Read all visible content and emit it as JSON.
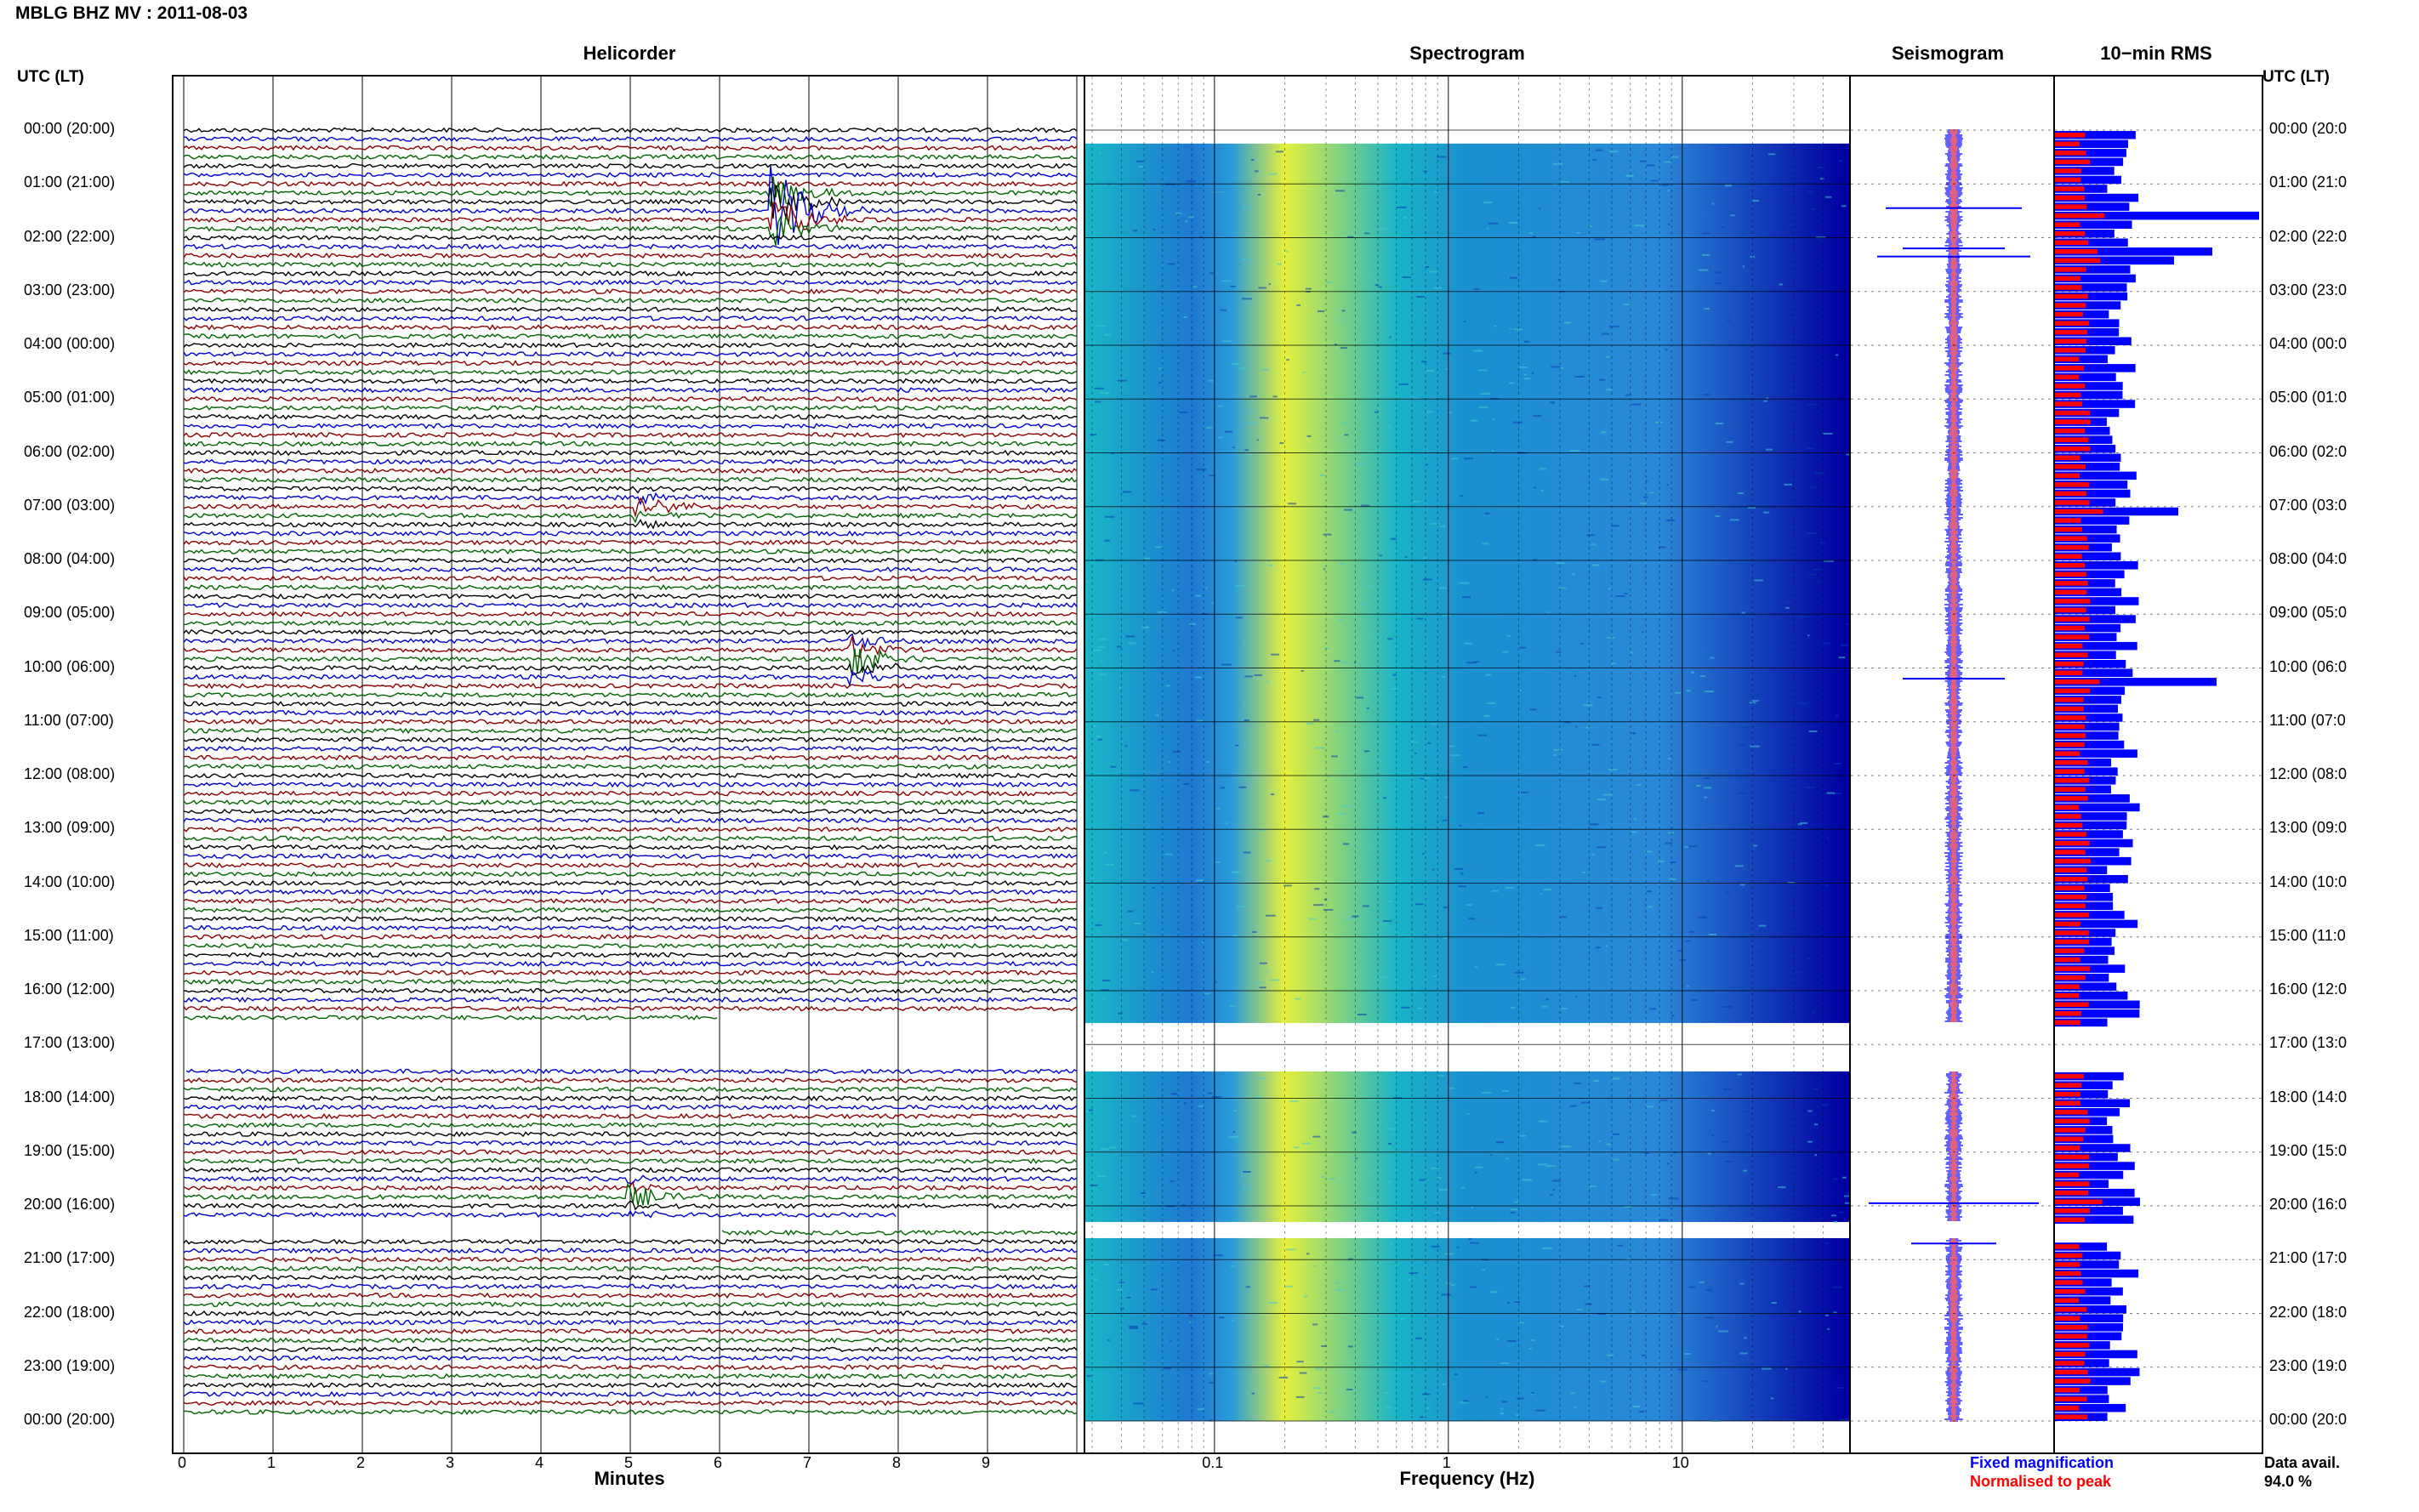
{
  "header": {
    "title": "MBLG BHZ MV : 2011-08-03",
    "utc_label_left": "UTC (LT)",
    "utc_label_right": "UTC (LT)"
  },
  "panels": {
    "helicorder": "Helicorder",
    "spectrogram": "Spectrogram",
    "seismogram": "Seismogram",
    "rms": "10−min RMS"
  },
  "hour_labels": [
    "00:00 (20:00)",
    "01:00 (21:00)",
    "02:00 (22:00)",
    "03:00 (23:00)",
    "04:00 (00:00)",
    "05:00 (01:00)",
    "06:00 (02:00)",
    "07:00 (03:00)",
    "08:00 (04:00)",
    "09:00 (05:00)",
    "10:00 (06:00)",
    "11:00 (07:00)",
    "12:00 (08:00)",
    "13:00 (09:00)",
    "14:00 (10:00)",
    "15:00 (11:00)",
    "16:00 (12:00)",
    "17:00 (13:00)",
    "18:00 (14:00)",
    "19:00 (15:00)",
    "20:00 (16:00)",
    "21:00 (17:00)",
    "22:00 (18:00)",
    "23:00 (19:00)",
    "00:00 (20:00)"
  ],
  "hour_labels_right": [
    "00:00 (20:0",
    "01:00 (21:0",
    "02:00 (22:0",
    "03:00 (23:0",
    "04:00 (00:0",
    "05:00 (01:0",
    "06:00 (02:0",
    "07:00 (03:0",
    "08:00 (04:0",
    "09:00 (05:0",
    "10:00 (06:0",
    "11:00 (07:0",
    "12:00 (08:0",
    "13:00 (09:0",
    "14:00 (10:0",
    "15:00 (11:0",
    "16:00 (12:0",
    "17:00 (13:0",
    "18:00 (14:0",
    "19:00 (15:0",
    "20:00 (16:0",
    "21:00 (17:0",
    "22:00 (18:0",
    "23:00 (19:0",
    "00:00 (20:0"
  ],
  "footer": {
    "legend_fixed": "Fixed magnification",
    "legend_norm": "Normalised to peak",
    "data_avail_label": "Data avail.",
    "data_avail_value": "94.0 %"
  },
  "colors": {
    "trace_cycle": [
      "#000000",
      "#0000cc",
      "#8b0000",
      "#006400"
    ],
    "fixed": "#0000ff",
    "normalised": "#ff0000",
    "spec_low": "#0000a0",
    "spec_mid": "#19b4c8",
    "spec_high": "#e6f03c"
  },
  "chart_data": [
    {
      "type": "line",
      "title": "Helicorder",
      "xlabel": "Minutes",
      "x_ticks": [
        "0",
        "1",
        "2",
        "3",
        "4",
        "5",
        "6",
        "7",
        "8",
        "9"
      ],
      "xlim": [
        0,
        10
      ],
      "ylabel": "UTC (LT)",
      "traces_per_hour": 6,
      "events": [
        {
          "hour": 1.6,
          "minute": 6.6,
          "amplitude": "large"
        },
        {
          "hour": 9.9,
          "minute": 7.5,
          "amplitude": "medium"
        },
        {
          "hour": 7.1,
          "minute": 5.1,
          "amplitude": "small"
        },
        {
          "hour": 19.9,
          "minute": 5.0,
          "amplitude": "small"
        }
      ],
      "gaps_utc_hours": [
        [
          16.6,
          17.5
        ],
        [
          20.3,
          20.6
        ]
      ]
    },
    {
      "type": "heatmap",
      "title": "Spectrogram",
      "xlabel": "Frequency (Hz)",
      "x_scale": "log",
      "x_ticks": [
        "0.1",
        "1",
        "10"
      ],
      "xlim": [
        0.03,
        50
      ],
      "ylim_hours": [
        0,
        24
      ],
      "gaps_utc_hours": [
        [
          16.6,
          17.5
        ],
        [
          20.3,
          20.6
        ]
      ]
    },
    {
      "type": "line",
      "title": "Seismogram",
      "series": [
        {
          "name": "Fixed magnification",
          "color": "#0000ff"
        },
        {
          "name": "Normalised to peak",
          "color": "#ff0000"
        }
      ]
    },
    {
      "type": "bar",
      "title": "10−min RMS",
      "orientation": "horizontal",
      "series": [
        {
          "name": "Fixed magnification",
          "color": "#0000ff"
        },
        {
          "name": "Normalised to peak",
          "color": "#ff0000"
        }
      ],
      "data_availability_percent": 94.0
    }
  ]
}
